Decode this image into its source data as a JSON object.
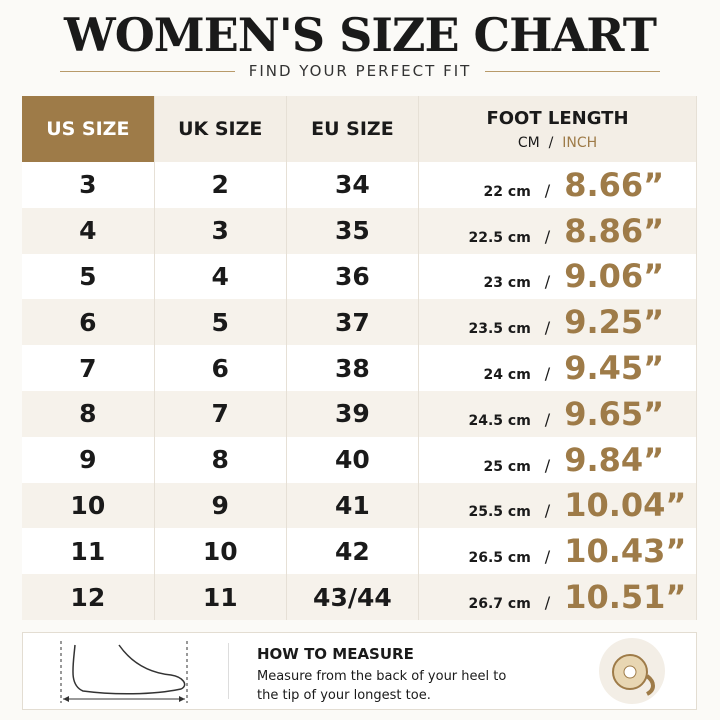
{
  "header": {
    "title": "WOMEN'S SIZE CHART",
    "subtitle": "FIND YOUR PERFECT FIT"
  },
  "table": {
    "columns": [
      "US SIZE",
      "UK SIZE",
      "EU SIZE",
      "FOOT LENGTH"
    ],
    "unit_cm": "CM",
    "separator": "/",
    "unit_inch": "INCH",
    "rows": [
      [
        "3",
        "2",
        "34",
        "22 cm",
        "8.66”"
      ],
      [
        "4",
        "3",
        "35",
        "22.5 cm",
        "8.86”"
      ],
      [
        "5",
        "4",
        "36",
        "23 cm",
        "9.06”"
      ],
      [
        "6",
        "5",
        "37",
        "23.5 cm",
        "9.25”"
      ],
      [
        "7",
        "6",
        "38",
        "24 cm",
        "9.45”"
      ],
      [
        "8",
        "7",
        "39",
        "24.5 cm",
        "9.65”"
      ],
      [
        "9",
        "8",
        "40",
        "25 cm",
        "9.84”"
      ],
      [
        "10",
        "9",
        "41",
        "25.5 cm",
        "10.04”"
      ],
      [
        "11",
        "10",
        "42",
        "26.5 cm",
        "10.43”"
      ],
      [
        "12",
        "11",
        "43/44",
        "26.7 cm",
        "10.51”"
      ]
    ]
  },
  "footer": {
    "title": "HOW TO MEASURE",
    "text": "Measure from the back of your heel to the tip of your longest toe."
  }
}
